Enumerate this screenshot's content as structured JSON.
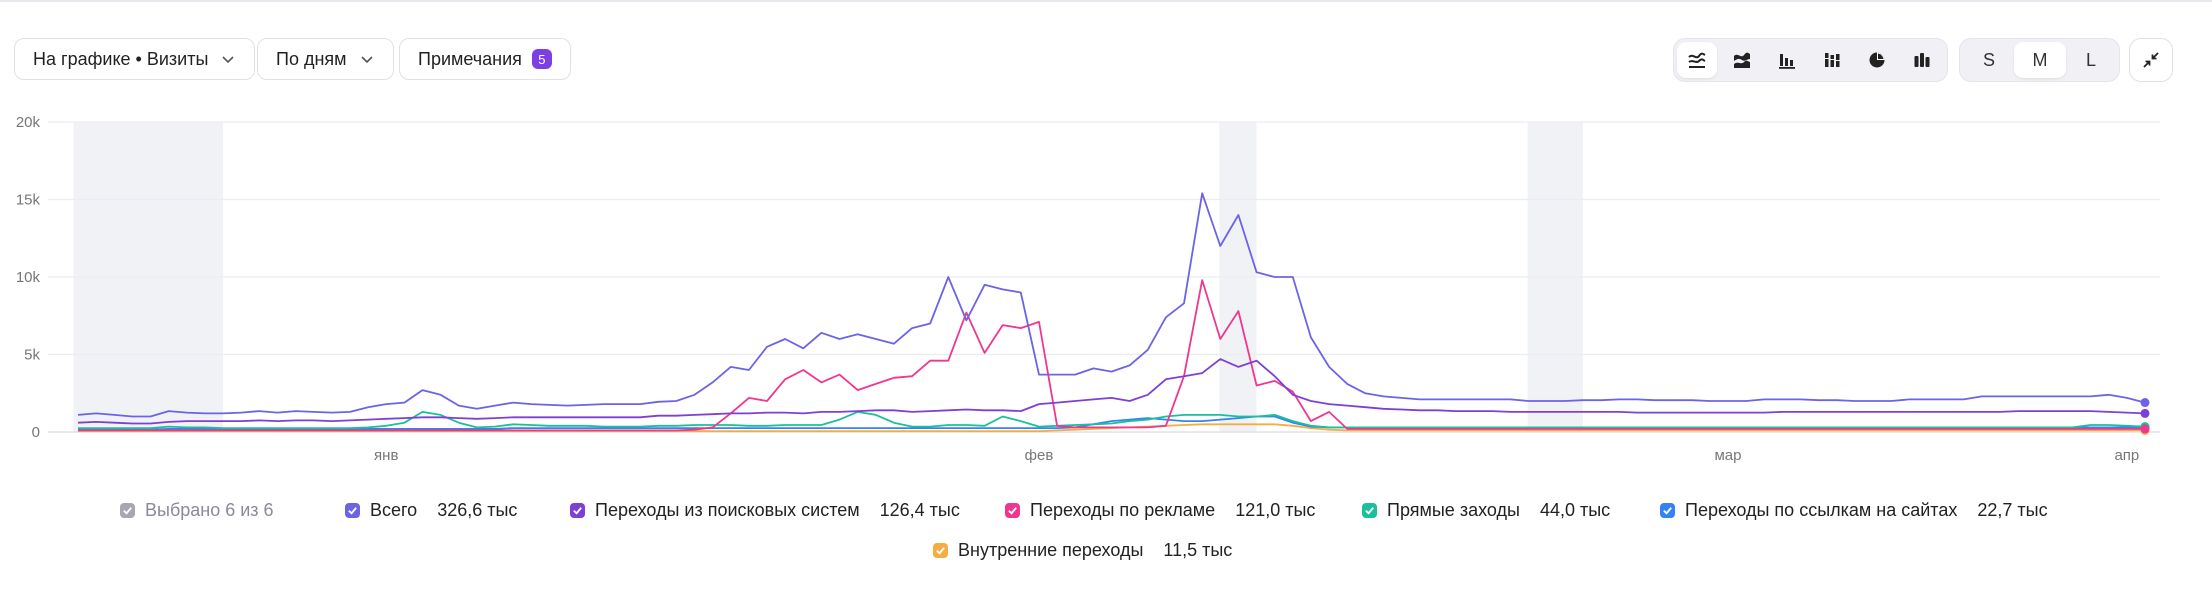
{
  "toolbar": {
    "chart_metric_label": "На графике • Визиты",
    "grouping_label": "По дням",
    "notes_label": "Примечания",
    "notes_count": "5",
    "chart_type_icons": [
      "stacked-area-line-icon",
      "stacked-area-icon",
      "bar-chart-icon",
      "stacked-bar-icon",
      "pie-chart-icon",
      "column-chart-icon"
    ],
    "active_chart_type_index": 0,
    "sizes": [
      "S",
      "M",
      "L"
    ],
    "active_size": "M",
    "collapse_icon": "collapse-arrows-icon"
  },
  "legend": {
    "summary": "Выбрано 6 из 6",
    "items": [
      {
        "label": "Всего",
        "value": "326,6 тыс",
        "color": "#6c63e6"
      },
      {
        "label": "Переходы из поисковых систем",
        "value": "126,4 тыс",
        "color": "#7e3fd6"
      },
      {
        "label": "Переходы по рекламе",
        "value": "121,0 тыс",
        "color": "#f0378f"
      },
      {
        "label": "Прямые заходы",
        "value": "44,0 тыс",
        "color": "#1bbf9c"
      },
      {
        "label": "Переходы по ссылкам на сайтах",
        "value": "22,7 тыс",
        "color": "#3383f5"
      },
      {
        "label": "Внутренние переходы",
        "value": "11,5 тыс",
        "color": "#f5ad42"
      }
    ]
  },
  "chart_data": {
    "type": "line",
    "x_count": 115,
    "x_tick_labels": [
      {
        "label": "янв",
        "index": 17
      },
      {
        "label": "фев",
        "index": 53
      },
      {
        "label": "мар",
        "index": 91
      },
      {
        "label": "апр",
        "index": 113
      }
    ],
    "ylim": [
      0,
      20000
    ],
    "y_ticks": [
      "0",
      "5k",
      "10k",
      "15k",
      "20k"
    ],
    "y_tick_values": [
      0,
      5000,
      10000,
      15000,
      20000
    ],
    "grid": true,
    "highlight_ranges": [
      [
        0.3,
        8
      ],
      [
        63.5,
        65
      ],
      [
        80.5,
        83
      ]
    ],
    "series": [
      {
        "name": "Всего",
        "color": "#6c63e6",
        "values": [
          1100,
          1200,
          1100,
          1000,
          1000,
          1350,
          1250,
          1200,
          1200,
          1250,
          1350,
          1250,
          1350,
          1300,
          1250,
          1300,
          1600,
          1800,
          1900,
          2700,
          2400,
          1700,
          1500,
          1700,
          1900,
          1800,
          1750,
          1700,
          1750,
          1800,
          1800,
          1800,
          1950,
          2000,
          2400,
          3200,
          4200,
          4000,
          5500,
          6000,
          5400,
          6400,
          6000,
          6300,
          6000,
          5700,
          6700,
          7000,
          10000,
          7200,
          9500,
          9200,
          9000,
          3700,
          3700,
          3700,
          4100,
          3900,
          4300,
          5300,
          7400,
          8300,
          15400,
          12000,
          14000,
          10300,
          10000,
          10000,
          6100,
          4200,
          3100,
          2500,
          2300,
          2200,
          2100,
          2100,
          2100,
          2100,
          2100,
          2100,
          2000,
          2000,
          2000,
          2050,
          2050,
          2100,
          2100,
          2050,
          2050,
          2050,
          2000,
          2000,
          2000,
          2100,
          2100,
          2100,
          2050,
          2050,
          2000,
          2000,
          2000,
          2100,
          2100,
          2100,
          2100,
          2300,
          2300,
          2300,
          2300,
          2300,
          2300,
          2300,
          2400,
          2200,
          1900
        ]
      },
      {
        "name": "Переходы из поисковых систем",
        "color": "#7e3fd6",
        "values": [
          600,
          650,
          600,
          550,
          550,
          650,
          700,
          700,
          700,
          700,
          750,
          700,
          750,
          750,
          700,
          750,
          800,
          850,
          900,
          950,
          950,
          900,
          850,
          900,
          950,
          950,
          950,
          950,
          950,
          950,
          950,
          950,
          1050,
          1050,
          1100,
          1150,
          1200,
          1200,
          1250,
          1250,
          1200,
          1300,
          1300,
          1350,
          1400,
          1400,
          1300,
          1350,
          1400,
          1450,
          1400,
          1400,
          1350,
          1800,
          1900,
          2000,
          2100,
          2200,
          2000,
          2400,
          3400,
          3600,
          3800,
          4700,
          4200,
          4600,
          3600,
          2400,
          2000,
          1800,
          1700,
          1600,
          1500,
          1450,
          1400,
          1400,
          1350,
          1350,
          1350,
          1300,
          1300,
          1300,
          1300,
          1300,
          1300,
          1300,
          1250,
          1250,
          1250,
          1250,
          1250,
          1250,
          1250,
          1250,
          1300,
          1300,
          1300,
          1300,
          1300,
          1300,
          1300,
          1300,
          1300,
          1300,
          1300,
          1300,
          1300,
          1350,
          1350,
          1350,
          1350,
          1350,
          1300,
          1250,
          1200
        ]
      },
      {
        "name": "Переходы по рекламе",
        "color": "#f0378f",
        "values": [
          100,
          100,
          100,
          100,
          100,
          100,
          100,
          100,
          100,
          100,
          100,
          100,
          100,
          100,
          100,
          100,
          100,
          100,
          100,
          100,
          100,
          100,
          100,
          100,
          100,
          100,
          100,
          100,
          100,
          100,
          100,
          100,
          100,
          100,
          150,
          300,
          1200,
          2200,
          2000,
          3400,
          4000,
          3200,
          3700,
          2700,
          3100,
          3500,
          3600,
          4600,
          4600,
          7700,
          5100,
          6900,
          6700,
          7100,
          400,
          300,
          300,
          300,
          300,
          300,
          400,
          3600,
          9800,
          6000,
          7800,
          3000,
          3300,
          2600,
          700,
          1300,
          200,
          200,
          200,
          200,
          200,
          200,
          200,
          200,
          200,
          200,
          200,
          200,
          200,
          200,
          200,
          200,
          200,
          200,
          200,
          200,
          200,
          200,
          200,
          200,
          200,
          200,
          200,
          200,
          200,
          200,
          200,
          200,
          200,
          200,
          200,
          200,
          200,
          200,
          200,
          200,
          200,
          200,
          200,
          200,
          200
        ]
      },
      {
        "name": "Прямые заходы",
        "color": "#1bbf9c",
        "values": [
          250,
          250,
          250,
          250,
          250,
          350,
          300,
          300,
          250,
          250,
          250,
          250,
          250,
          250,
          250,
          250,
          300,
          400,
          600,
          1300,
          1100,
          600,
          300,
          350,
          500,
          450,
          400,
          400,
          400,
          350,
          350,
          350,
          400,
          400,
          450,
          450,
          450,
          400,
          400,
          450,
          450,
          450,
          800,
          1300,
          1100,
          600,
          350,
          350,
          450,
          450,
          400,
          1000,
          700,
          350,
          400,
          450,
          500,
          550,
          700,
          800,
          1000,
          1100,
          1100,
          1100,
          1000,
          1000,
          1100,
          700,
          400,
          300,
          300,
          300,
          300,
          300,
          300,
          300,
          300,
          300,
          300,
          300,
          300,
          300,
          300,
          300,
          300,
          300,
          300,
          300,
          300,
          300,
          300,
          300,
          300,
          300,
          300,
          300,
          300,
          300,
          300,
          300,
          300,
          300,
          300,
          300,
          300,
          300,
          300,
          300,
          300,
          300,
          300,
          450,
          450,
          400,
          350
        ]
      },
      {
        "name": "Переходы по ссылкам на сайтах",
        "color": "#3383f5",
        "values": [
          150,
          150,
          150,
          150,
          150,
          200,
          200,
          200,
          200,
          200,
          200,
          200,
          200,
          200,
          200,
          200,
          200,
          200,
          200,
          200,
          200,
          200,
          200,
          200,
          250,
          250,
          250,
          250,
          250,
          250,
          250,
          250,
          250,
          250,
          250,
          250,
          250,
          250,
          250,
          250,
          250,
          250,
          250,
          250,
          250,
          250,
          250,
          250,
          250,
          250,
          250,
          250,
          250,
          250,
          250,
          300,
          500,
          700,
          800,
          900,
          800,
          700,
          700,
          800,
          900,
          1000,
          1000,
          600,
          350,
          300,
          300,
          300,
          300,
          300,
          300,
          300,
          300,
          300,
          300,
          300,
          300,
          300,
          300,
          300,
          300,
          300,
          300,
          300,
          300,
          300,
          300,
          300,
          300,
          300,
          300,
          300,
          300,
          300,
          300,
          300,
          300,
          300,
          300,
          300,
          300,
          300,
          300,
          300,
          300,
          300,
          300,
          300,
          300,
          300,
          300
        ]
      },
      {
        "name": "Внутренние переходы",
        "color": "#f5ad42",
        "values": [
          50,
          50,
          50,
          50,
          50,
          50,
          50,
          50,
          50,
          50,
          50,
          50,
          50,
          50,
          50,
          50,
          50,
          50,
          50,
          50,
          50,
          50,
          50,
          50,
          50,
          50,
          50,
          50,
          50,
          50,
          50,
          50,
          50,
          50,
          50,
          50,
          50,
          50,
          50,
          50,
          50,
          50,
          50,
          50,
          50,
          50,
          50,
          50,
          50,
          50,
          50,
          50,
          50,
          50,
          100,
          150,
          200,
          250,
          300,
          350,
          400,
          450,
          500,
          500,
          500,
          500,
          500,
          400,
          250,
          150,
          100,
          100,
          100,
          100,
          100,
          100,
          100,
          100,
          100,
          100,
          100,
          100,
          100,
          100,
          100,
          100,
          100,
          100,
          100,
          100,
          100,
          100,
          100,
          100,
          100,
          100,
          100,
          100,
          100,
          100,
          100,
          100,
          100,
          100,
          100,
          100,
          100,
          100,
          100,
          100,
          100,
          100,
          100,
          100,
          100
        ]
      }
    ]
  }
}
